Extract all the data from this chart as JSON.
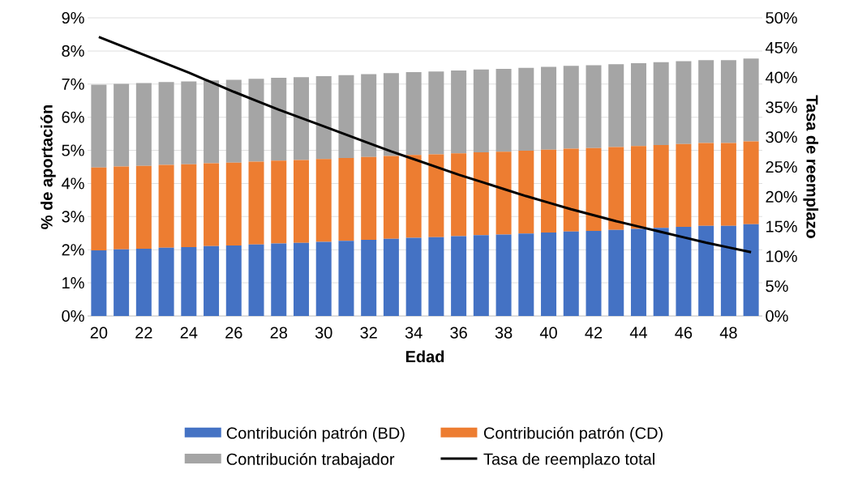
{
  "chart_data": {
    "type": "bar",
    "stacked": true,
    "grid": "y",
    "legend": "bottom",
    "xlabel": "Edad",
    "ylabel": "% de aportación",
    "y2label": "Tasa de reemplazo",
    "categories": [
      "20",
      null,
      "22",
      null,
      "24",
      null,
      "26",
      null,
      "28",
      null,
      "30",
      null,
      "32",
      null,
      "34",
      null,
      "36",
      null,
      "38",
      null,
      "40",
      null,
      "42",
      null,
      "44",
      null,
      "46",
      null,
      "48",
      null
    ],
    "ylim": [
      0,
      9
    ],
    "yticks": [
      {
        "value": 0,
        "label": "0%"
      },
      {
        "value": 1,
        "label": "1%"
      },
      {
        "value": 2,
        "label": "2%"
      },
      {
        "value": 3,
        "label": "3%"
      },
      {
        "value": 4,
        "label": "4%"
      },
      {
        "value": 5,
        "label": "5%"
      },
      {
        "value": 6,
        "label": "6%"
      },
      {
        "value": 7,
        "label": "7%"
      },
      {
        "value": 8,
        "label": "8%"
      },
      {
        "value": 9,
        "label": "9%"
      }
    ],
    "y2lim": [
      0,
      50
    ],
    "y2ticks": [
      {
        "value": 0,
        "label": "0%"
      },
      {
        "value": 5,
        "label": "5%"
      },
      {
        "value": 10,
        "label": "10%"
      },
      {
        "value": 15,
        "label": "15%"
      },
      {
        "value": 20,
        "label": "20%"
      },
      {
        "value": 25,
        "label": "25%"
      },
      {
        "value": 30,
        "label": "30%"
      },
      {
        "value": 35,
        "label": "35%"
      },
      {
        "value": 40,
        "label": "40%"
      },
      {
        "value": 45,
        "label": "45%"
      },
      {
        "value": 50,
        "label": "50%"
      }
    ],
    "series": [
      {
        "name": "Contribución patrón (BD)",
        "color": "#4472c4",
        "values": [
          1.98,
          2.01,
          2.03,
          2.06,
          2.08,
          2.11,
          2.13,
          2.16,
          2.19,
          2.21,
          2.24,
          2.27,
          2.3,
          2.33,
          2.36,
          2.38,
          2.41,
          2.44,
          2.46,
          2.49,
          2.52,
          2.55,
          2.57,
          2.6,
          2.63,
          2.66,
          2.69,
          2.72,
          2.72,
          2.77
        ]
      },
      {
        "name": "Contribución patrón (CD)",
        "color": "#ed7d31",
        "values": [
          2.5,
          2.5,
          2.5,
          2.5,
          2.5,
          2.5,
          2.5,
          2.5,
          2.5,
          2.5,
          2.5,
          2.5,
          2.5,
          2.5,
          2.5,
          2.5,
          2.5,
          2.5,
          2.5,
          2.5,
          2.5,
          2.5,
          2.5,
          2.5,
          2.5,
          2.5,
          2.5,
          2.5,
          2.5,
          2.5
        ]
      },
      {
        "name": "Contribución trabajador",
        "color": "#a5a5a5",
        "values": [
          2.5,
          2.5,
          2.5,
          2.5,
          2.5,
          2.5,
          2.5,
          2.5,
          2.5,
          2.5,
          2.5,
          2.5,
          2.5,
          2.5,
          2.5,
          2.5,
          2.5,
          2.5,
          2.5,
          2.5,
          2.5,
          2.5,
          2.5,
          2.5,
          2.5,
          2.5,
          2.5,
          2.5,
          2.5,
          2.5
        ]
      },
      {
        "name": "Tasa de reemplazo total",
        "color": "#000000",
        "type": "line",
        "axis": "y2",
        "values": [
          46.8,
          45.3,
          43.8,
          42.3,
          40.8,
          39.2,
          37.6,
          36.1,
          34.6,
          33.2,
          31.8,
          30.4,
          29.0,
          27.6,
          26.3,
          25.0,
          23.7,
          22.5,
          21.3,
          20.1,
          19.0,
          17.9,
          16.9,
          15.9,
          15.0,
          14.1,
          13.2,
          12.3,
          11.5,
          10.7
        ]
      }
    ]
  }
}
